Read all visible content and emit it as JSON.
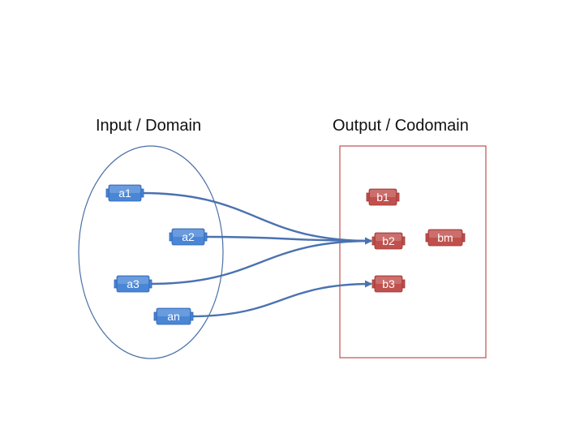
{
  "titles": {
    "domain": "Input / Domain",
    "codomain": "Output / Codomain"
  },
  "colors": {
    "domain_node": "#4a86d6",
    "domain_node_border": "#2e64b3",
    "codomain_node": "#c0504d",
    "codomain_node_border": "#9c3532",
    "arrow": "#4a72b0",
    "domain_outline": "#4a6fa5",
    "codomain_outline": "#c0504d"
  },
  "domain_nodes": [
    {
      "id": "a1",
      "label": "a1"
    },
    {
      "id": "a2",
      "label": "a2"
    },
    {
      "id": "a3",
      "label": "a3"
    },
    {
      "id": "an",
      "label": "an"
    }
  ],
  "codomain_nodes": [
    {
      "id": "b1",
      "label": "b1"
    },
    {
      "id": "b2",
      "label": "b2"
    },
    {
      "id": "bm",
      "label": "bm"
    },
    {
      "id": "b3",
      "label": "b3"
    }
  ],
  "mappings": [
    {
      "from": "a1",
      "to": "b2"
    },
    {
      "from": "a2",
      "to": "b2"
    },
    {
      "from": "a3",
      "to": "b2"
    },
    {
      "from": "an",
      "to": "b3"
    }
  ]
}
